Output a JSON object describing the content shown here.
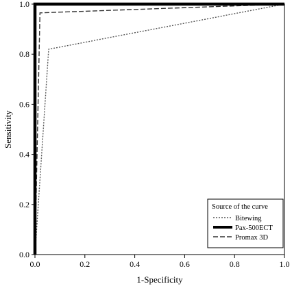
{
  "chart_data": {
    "type": "line",
    "title": "",
    "xlabel": "1-Specificity",
    "ylabel": "Sensitivity",
    "xlim": [
      0.0,
      1.0
    ],
    "ylim": [
      0.0,
      1.0
    ],
    "x_ticks": [
      "0.0",
      "0.2",
      "0.4",
      "0.6",
      "0.8",
      "1.0"
    ],
    "y_ticks": [
      "0.0",
      "0.2",
      "0.4",
      "0.6",
      "0.8",
      "1.0"
    ],
    "grid": false,
    "legend": {
      "title": "Source of the curve",
      "position": "bottom-right"
    },
    "series": [
      {
        "name": "Bitewing",
        "style": "dotted",
        "color": "#555555",
        "x": [
          0.0,
          0.055,
          1.0
        ],
        "y": [
          0.0,
          0.82,
          1.0
        ]
      },
      {
        "name": "Pax-500ECT",
        "style": "solid-thick",
        "color": "#000000",
        "x": [
          0.0,
          0.0,
          1.0
        ],
        "y": [
          0.0,
          1.0,
          1.0
        ]
      },
      {
        "name": "Promax 3D",
        "style": "dashed",
        "color": "#333333",
        "x": [
          0.0,
          0.02,
          1.0
        ],
        "y": [
          0.0,
          0.965,
          1.0
        ]
      }
    ]
  }
}
